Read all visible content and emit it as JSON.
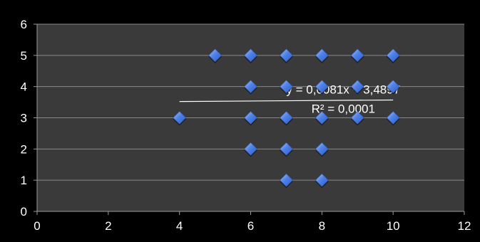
{
  "chart_data": {
    "type": "scatter",
    "title": "",
    "xlabel": "",
    "ylabel": "",
    "xlim": [
      0,
      12
    ],
    "ylim": [
      0,
      6
    ],
    "x_ticks": [
      "0",
      "2",
      "4",
      "6",
      "8",
      "10",
      "12"
    ],
    "y_ticks": [
      "0",
      "1",
      "2",
      "3",
      "4",
      "5",
      "6"
    ],
    "grid": "horizontal",
    "legend": "none",
    "points": [
      {
        "x": 4,
        "y": 3
      },
      {
        "x": 5,
        "y": 5
      },
      {
        "x": 6,
        "y": 2
      },
      {
        "x": 6,
        "y": 3
      },
      {
        "x": 6,
        "y": 4
      },
      {
        "x": 6,
        "y": 5
      },
      {
        "x": 7,
        "y": 1
      },
      {
        "x": 7,
        "y": 2
      },
      {
        "x": 7,
        "y": 3
      },
      {
        "x": 7,
        "y": 4
      },
      {
        "x": 7,
        "y": 5
      },
      {
        "x": 8,
        "y": 1
      },
      {
        "x": 8,
        "y": 2
      },
      {
        "x": 8,
        "y": 3
      },
      {
        "x": 8,
        "y": 4
      },
      {
        "x": 8,
        "y": 5
      },
      {
        "x": 9,
        "y": 3
      },
      {
        "x": 9,
        "y": 4
      },
      {
        "x": 9,
        "y": 5
      },
      {
        "x": 10,
        "y": 3
      },
      {
        "x": 10,
        "y": 4
      },
      {
        "x": 10,
        "y": 5
      }
    ],
    "trendline": {
      "type": "linear",
      "slope": 0.0081,
      "intercept": 3.4897,
      "x_range": [
        4,
        10
      ],
      "equation": "y = 0,0081x + 3,4897",
      "r_squared": "R² = 0,0001"
    },
    "colors": {
      "background": "#000000",
      "plot_area": "#3a3a3a",
      "gridline": "#8a8a8a",
      "marker": "#4f81e6",
      "marker_highlight": "#8fb4ff",
      "trendline": "#ffffff",
      "text": "#ffffff"
    }
  }
}
